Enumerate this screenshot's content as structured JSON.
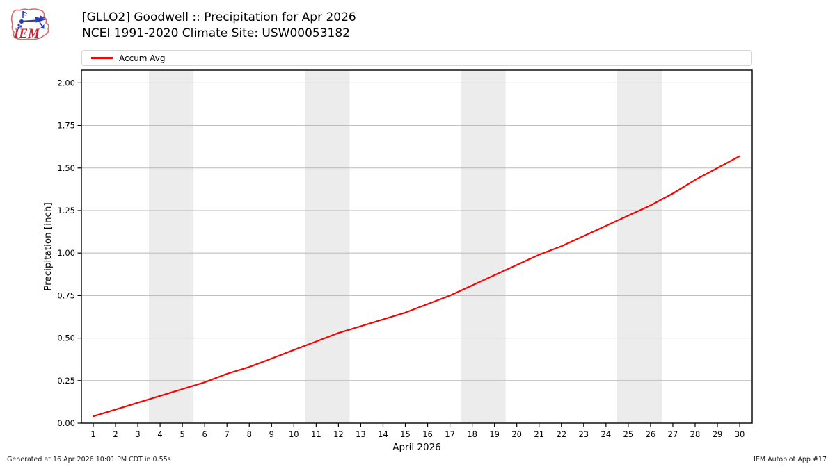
{
  "header": {
    "title": "[GLLO2] Goodwell :: Precipitation for Apr 2026",
    "subtitle": "NCEI 1991-2020 Climate Site: USW00053182"
  },
  "logo": {
    "text": "IEM"
  },
  "footer": {
    "generated": "Generated at 16 Apr 2026 10:01 PM CDT in 0.55s",
    "credit": "IEM Autoplot App #17"
  },
  "chart_data": {
    "type": "line",
    "title": "[GLLO2] Goodwell :: Precipitation for Apr 2026",
    "subtitle": "NCEI 1991-2020 Climate Site: USW00053182",
    "xlabel": "April 2026",
    "ylabel": "Precipitation [inch]",
    "xlim": [
      0.47,
      30.56
    ],
    "ylim": [
      0,
      2.075
    ],
    "grid": "horizontal",
    "x_ticks": [
      1,
      2,
      3,
      4,
      5,
      6,
      7,
      8,
      9,
      10,
      11,
      12,
      13,
      14,
      15,
      16,
      17,
      18,
      19,
      20,
      21,
      22,
      23,
      24,
      25,
      26,
      27,
      28,
      29,
      30
    ],
    "y_ticks": [
      {
        "v": 0.0,
        "label": "0.00"
      },
      {
        "v": 0.25,
        "label": "0.25"
      },
      {
        "v": 0.5,
        "label": "0.50"
      },
      {
        "v": 0.75,
        "label": "0.75"
      },
      {
        "v": 1.0,
        "label": "1.00"
      },
      {
        "v": 1.25,
        "label": "1.25"
      },
      {
        "v": 1.5,
        "label": "1.50"
      },
      {
        "v": 1.75,
        "label": "1.75"
      },
      {
        "v": 2.0,
        "label": "2.00"
      }
    ],
    "legend": {
      "position": "top",
      "entries": [
        {
          "label": "Accum Avg",
          "color": "#ff0000"
        }
      ]
    },
    "weekend_bands": [
      [
        3.5,
        5.5
      ],
      [
        10.5,
        12.5
      ],
      [
        17.5,
        19.5
      ],
      [
        24.5,
        26.5
      ]
    ],
    "colors": {
      "line": "#ff0000",
      "band": "#ececec",
      "grid": "#b8b8b8",
      "spine": "#000000"
    },
    "series": [
      {
        "name": "Accum Avg",
        "color": "#ff0000",
        "x": [
          1,
          2,
          3,
          4,
          5,
          6,
          7,
          8,
          9,
          10,
          11,
          12,
          13,
          14,
          15,
          16,
          17,
          18,
          19,
          20,
          21,
          22,
          23,
          24,
          25,
          26,
          27,
          28,
          29,
          30
        ],
        "values": [
          0.04,
          0.08,
          0.12,
          0.16,
          0.2,
          0.24,
          0.29,
          0.33,
          0.38,
          0.43,
          0.48,
          0.53,
          0.57,
          0.61,
          0.65,
          0.7,
          0.75,
          0.81,
          0.87,
          0.93,
          0.99,
          1.04,
          1.1,
          1.16,
          1.22,
          1.28,
          1.35,
          1.43,
          1.5,
          1.57
        ]
      }
    ]
  }
}
